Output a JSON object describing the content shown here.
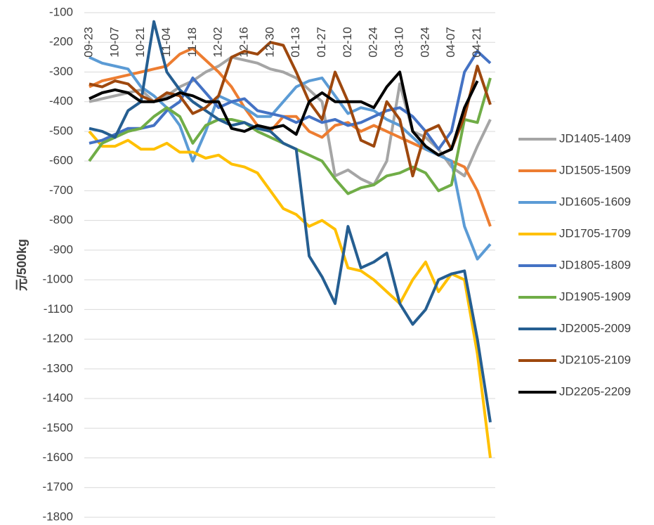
{
  "chart_data": {
    "type": "line",
    "y_label": "元/500kg",
    "categories": [
      "09-23",
      null,
      "10-07",
      null,
      "10-21",
      null,
      "11-04",
      null,
      "11-18",
      null,
      "12-02",
      null,
      "12-16",
      null,
      "12-30",
      null,
      "01-13",
      null,
      "01-27",
      null,
      "02-10",
      null,
      "02-24",
      null,
      "03-10",
      null,
      "03-24",
      null,
      "04-07",
      null,
      "04-21",
      null
    ],
    "ylim": [
      -1800,
      -100
    ],
    "yticks": [
      -100,
      -200,
      -300,
      -400,
      -500,
      -600,
      -700,
      -800,
      -900,
      -1000,
      -1100,
      -1200,
      -1300,
      -1400,
      -1500,
      -1600,
      -1700,
      -1800
    ],
    "grid": true,
    "legend": "right",
    "series": [
      {
        "name": "JD1405-1409",
        "color": "#a5a5a5",
        "values": [
          -400,
          -390,
          -380,
          -370,
          -360,
          -400,
          -380,
          -350,
          -330,
          -300,
          -280,
          -250,
          -260,
          -270,
          -290,
          -300,
          -320,
          -360,
          -400,
          -650,
          -630,
          -660,
          -680,
          -600,
          -340,
          -500,
          -520,
          -560,
          -620,
          -650,
          -550,
          -460
        ]
      },
      {
        "name": "JD1505-1509",
        "color": "#ed7d31",
        "values": [
          -350,
          -330,
          -320,
          -310,
          -300,
          -290,
          -280,
          -240,
          -220,
          -260,
          -300,
          -350,
          -420,
          -480,
          -500,
          -450,
          -450,
          -500,
          -520,
          -480,
          -470,
          -500,
          -480,
          -500,
          -520,
          -540,
          -560,
          -580,
          -600,
          -620,
          -700,
          -820
        ]
      },
      {
        "name": "JD1605-1609",
        "color": "#5b9bd5",
        "values": [
          -250,
          -270,
          -280,
          -290,
          -350,
          -380,
          -420,
          -480,
          -600,
          -500,
          -380,
          -400,
          -420,
          -450,
          -450,
          -400,
          -350,
          -330,
          -320,
          -380,
          -440,
          -420,
          -430,
          -460,
          -480,
          -520,
          -560,
          -580,
          -600,
          -820,
          -930,
          -880
        ]
      },
      {
        "name": "JD1705-1709",
        "color": "#ffc000",
        "values": [
          -500,
          -550,
          -550,
          -530,
          -560,
          -560,
          -540,
          -570,
          -570,
          -590,
          -580,
          -610,
          -620,
          -640,
          -700,
          -760,
          -780,
          -820,
          -800,
          -830,
          -960,
          -970,
          -1000,
          -1040,
          -1080,
          -1000,
          -940,
          -1040,
          -980,
          -1000,
          -1250,
          -1600
        ]
      },
      {
        "name": "JD1805-1809",
        "color": "#4472c4",
        "values": [
          -540,
          -530,
          -510,
          -490,
          -490,
          -480,
          -430,
          -400,
          -320,
          -370,
          -420,
          -400,
          -390,
          -430,
          -440,
          -450,
          -470,
          -450,
          -470,
          -460,
          -480,
          -470,
          -450,
          -430,
          -420,
          -450,
          -500,
          -560,
          -500,
          -300,
          -230,
          -270
        ]
      },
      {
        "name": "JD1905-1909",
        "color": "#70ad47",
        "values": [
          -600,
          -540,
          -520,
          -500,
          -490,
          -450,
          -420,
          -450,
          -540,
          -480,
          -460,
          -460,
          -470,
          -500,
          -520,
          -540,
          -560,
          -580,
          -600,
          -660,
          -710,
          -690,
          -680,
          -650,
          -640,
          -620,
          -640,
          -700,
          -680,
          -460,
          -470,
          -320
        ]
      },
      {
        "name": "JD2005-2009",
        "color": "#255e91",
        "values": [
          -490,
          -500,
          -520,
          -430,
          -400,
          -130,
          -300,
          -360,
          -400,
          -430,
          -460,
          -480,
          -470,
          -490,
          -500,
          -540,
          -560,
          -920,
          -990,
          -1080,
          -820,
          -960,
          -940,
          -910,
          -1080,
          -1150,
          -1100,
          -1000,
          -980,
          -970,
          -1200,
          -1480
        ]
      },
      {
        "name": "JD2105-2109",
        "color": "#9e480e",
        "values": [
          -340,
          -350,
          -330,
          -340,
          -380,
          -400,
          -370,
          -380,
          -440,
          -420,
          -380,
          -250,
          -230,
          -240,
          -200,
          -210,
          -300,
          -400,
          -460,
          -300,
          -400,
          -530,
          -550,
          -400,
          -460,
          -650,
          -500,
          -480,
          -560,
          -450,
          -280,
          -410
        ]
      },
      {
        "name": "JD2205-2209",
        "color": "#000000",
        "values": [
          -390,
          -370,
          -360,
          -370,
          -400,
          -400,
          -390,
          -370,
          -380,
          -400,
          -400,
          -490,
          -500,
          -480,
          -490,
          -480,
          -510,
          -400,
          -370,
          -400,
          -400,
          -400,
          -420,
          -350,
          -300,
          -500,
          -550,
          -580,
          -560,
          -420,
          -330,
          null
        ]
      }
    ]
  }
}
